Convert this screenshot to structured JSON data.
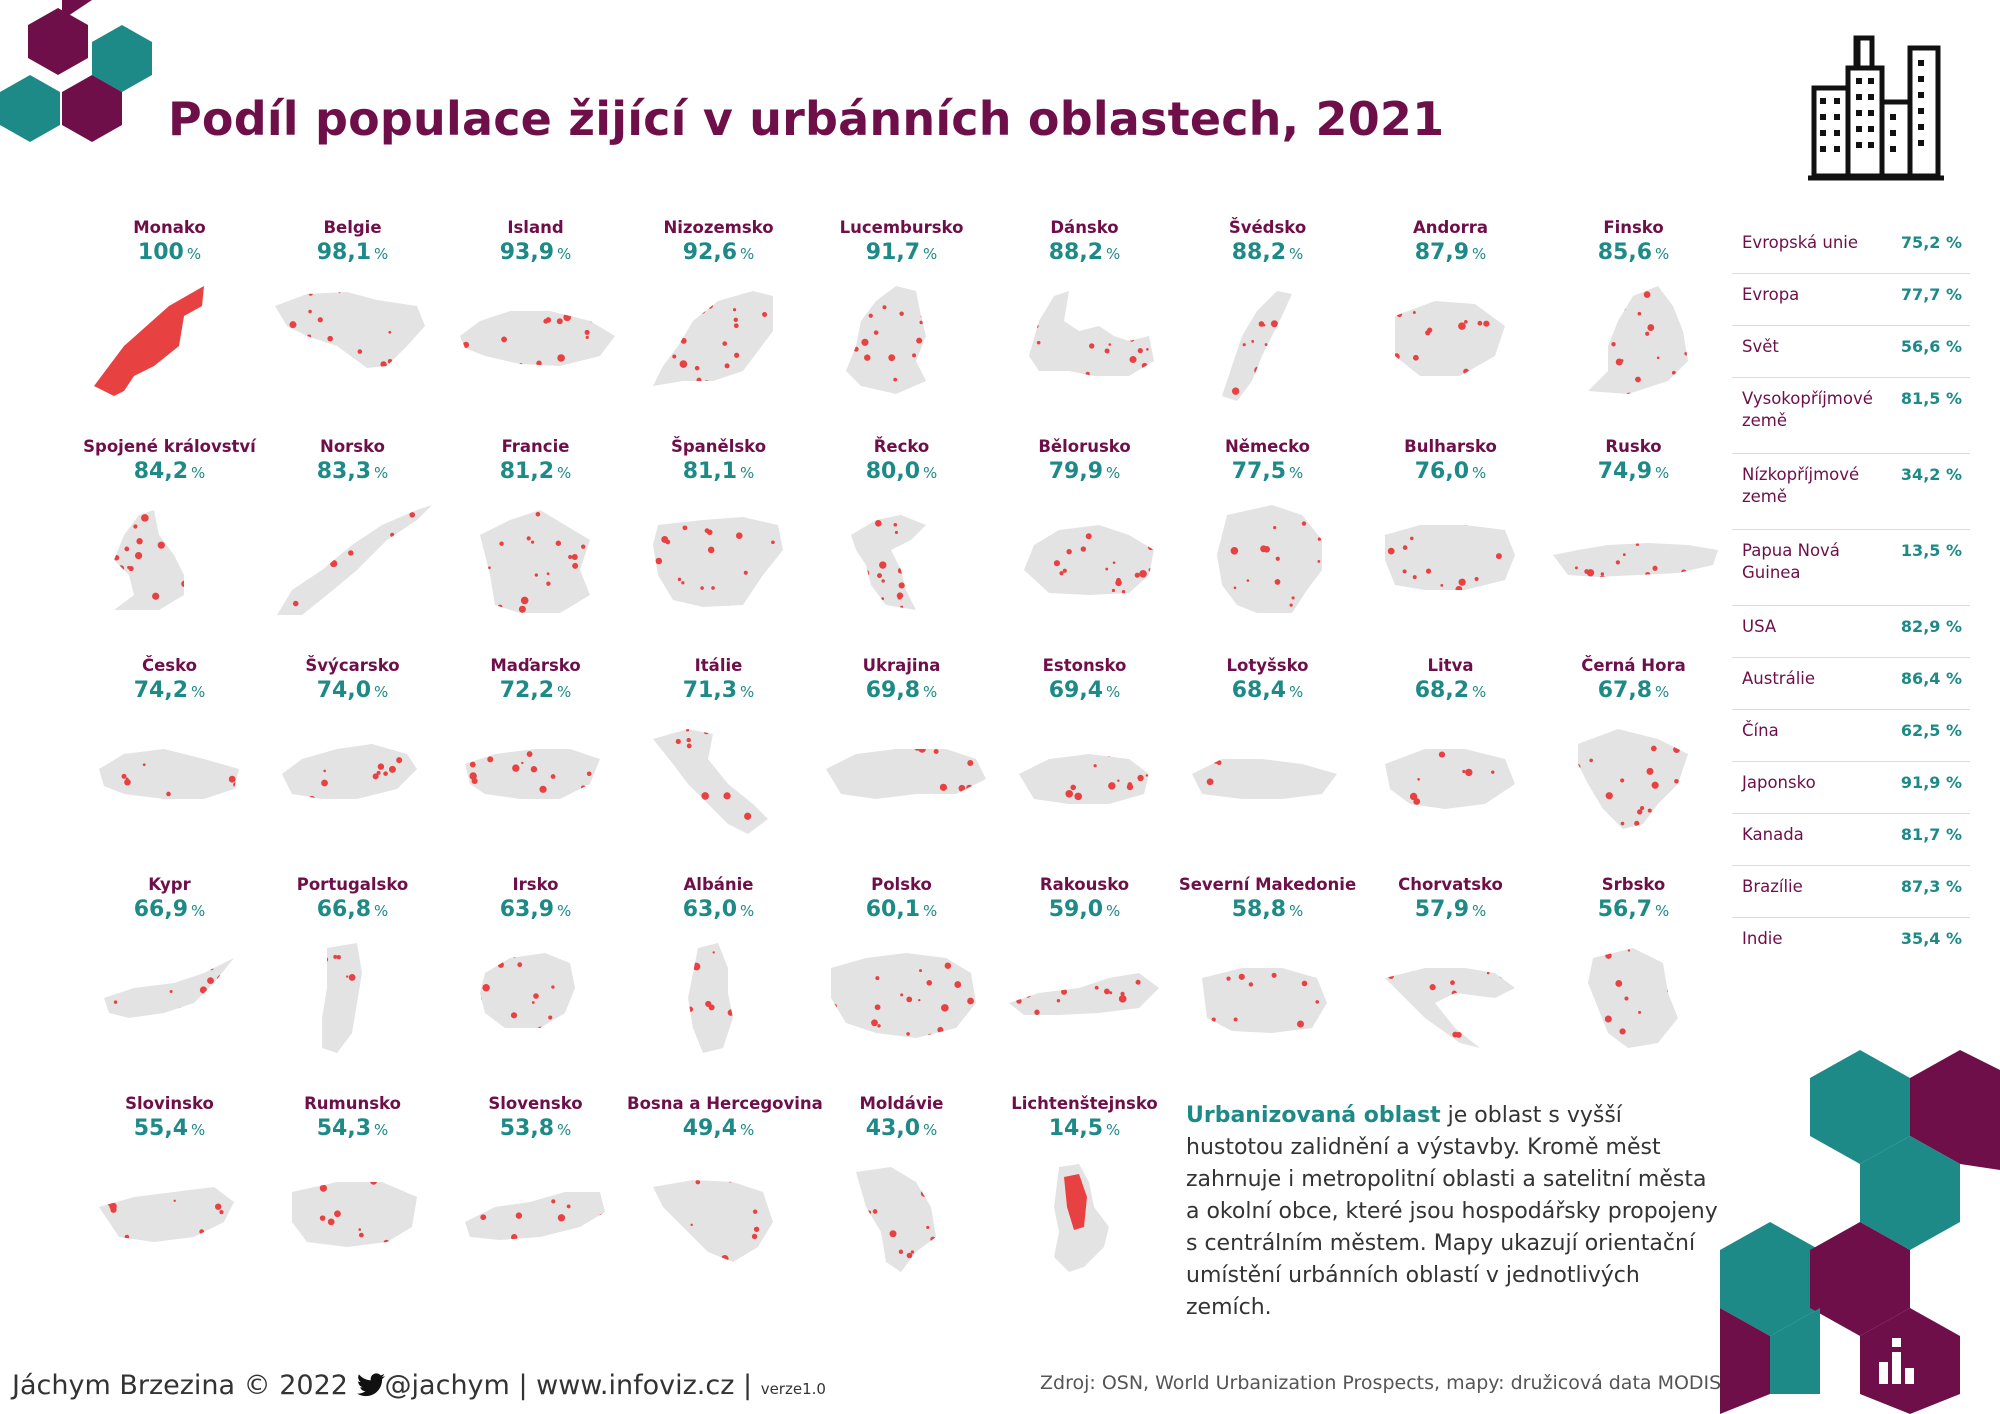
{
  "title": "Podíl populace žijící v urbánních oblastech, 2021",
  "colors": {
    "title": "#6e0f4a",
    "value": "#1e8a87",
    "map_land": "#e3e3e3",
    "map_urban": "#e84142",
    "hex_purple": "#6e0f4a",
    "hex_teal": "#1e8a87"
  },
  "chart_data": {
    "type": "table",
    "unit": "%",
    "countries": [
      {
        "name": "Monako",
        "value": "100",
        "num": 100
      },
      {
        "name": "Belgie",
        "value": "98,1",
        "num": 98.1
      },
      {
        "name": "Island",
        "value": "93,9",
        "num": 93.9
      },
      {
        "name": "Nizozemsko",
        "value": "92,6",
        "num": 92.6
      },
      {
        "name": "Lucembursko",
        "value": "91,7",
        "num": 91.7
      },
      {
        "name": "Dánsko",
        "value": "88,2",
        "num": 88.2
      },
      {
        "name": "Švédsko",
        "value": "88,2",
        "num": 88.2
      },
      {
        "name": "Andorra",
        "value": "87,9",
        "num": 87.9
      },
      {
        "name": "Finsko",
        "value": "85,6",
        "num": 85.6
      },
      {
        "name": "Spojené království",
        "value": "84,2",
        "num": 84.2
      },
      {
        "name": "Norsko",
        "value": "83,3",
        "num": 83.3
      },
      {
        "name": "Francie",
        "value": "81,2",
        "num": 81.2
      },
      {
        "name": "Španělsko",
        "value": "81,1",
        "num": 81.1
      },
      {
        "name": "Řecko",
        "value": "80,0",
        "num": 80.0
      },
      {
        "name": "Bělorusko",
        "value": "79,9",
        "num": 79.9
      },
      {
        "name": "Německo",
        "value": "77,5",
        "num": 77.5
      },
      {
        "name": "Bulharsko",
        "value": "76,0",
        "num": 76.0
      },
      {
        "name": "Rusko",
        "value": "74,9",
        "num": 74.9
      },
      {
        "name": "Česko",
        "value": "74,2",
        "num": 74.2
      },
      {
        "name": "Švýcarsko",
        "value": "74,0",
        "num": 74.0
      },
      {
        "name": "Maďarsko",
        "value": "72,2",
        "num": 72.2
      },
      {
        "name": "Itálie",
        "value": "71,3",
        "num": 71.3
      },
      {
        "name": "Ukrajina",
        "value": "69,8",
        "num": 69.8
      },
      {
        "name": "Estonsko",
        "value": "69,4",
        "num": 69.4
      },
      {
        "name": "Lotyšsko",
        "value": "68,4",
        "num": 68.4
      },
      {
        "name": "Litva",
        "value": "68,2",
        "num": 68.2
      },
      {
        "name": "Černá Hora",
        "value": "67,8",
        "num": 67.8
      },
      {
        "name": "Kypr",
        "value": "66,9",
        "num": 66.9
      },
      {
        "name": "Portugalsko",
        "value": "66,8",
        "num": 66.8
      },
      {
        "name": "Irsko",
        "value": "63,9",
        "num": 63.9
      },
      {
        "name": "Albánie",
        "value": "63,0",
        "num": 63.0
      },
      {
        "name": "Polsko",
        "value": "60,1",
        "num": 60.1
      },
      {
        "name": "Rakousko",
        "value": "59,0",
        "num": 59.0
      },
      {
        "name": "Severní Makedonie",
        "value": "58,8",
        "num": 58.8
      },
      {
        "name": "Chorvatsko",
        "value": "57,9",
        "num": 57.9
      },
      {
        "name": "Srbsko",
        "value": "56,7",
        "num": 56.7
      },
      {
        "name": "Slovinsko",
        "value": "55,4",
        "num": 55.4
      },
      {
        "name": "Rumunsko",
        "value": "54,3",
        "num": 54.3
      },
      {
        "name": "Slovensko",
        "value": "53,8",
        "num": 53.8
      },
      {
        "name": "Bosna a Hercegovina",
        "value": "49,4",
        "num": 49.4
      },
      {
        "name": "Moldávie",
        "value": "43,0",
        "num": 43.0
      },
      {
        "name": "Lichtenštejnsko",
        "value": "14,5",
        "num": 14.5
      }
    ],
    "regions": [
      {
        "name": "Evropská unie",
        "value": "75,2 %"
      },
      {
        "name": "Evropa",
        "value": "77,7 %"
      },
      {
        "name": "Svět",
        "value": "56,6 %"
      },
      {
        "name": "Vysokopříjmové země",
        "value": "81,5 %"
      },
      {
        "name": "Nízkopříjmové země",
        "value": "34,2 %"
      },
      {
        "name": "Papua Nová Guinea",
        "value": "13,5 %"
      },
      {
        "name": "USA",
        "value": "82,9 %"
      },
      {
        "name": "Austrálie",
        "value": "86,4 %"
      },
      {
        "name": "Čína",
        "value": "62,5 %"
      },
      {
        "name": "Japonsko",
        "value": "91,9 %"
      },
      {
        "name": "Kanada",
        "value": "81,7 %"
      },
      {
        "name": "Brazílie",
        "value": "87,3 %"
      },
      {
        "name": "Indie",
        "value": "35,4 %"
      }
    ]
  },
  "note": {
    "highlight": "Urbanizovaná oblast",
    "text": " je oblast s vyšší hustotou zalidnění a výstavby. Kromě měst zahrnuje i metropolitní oblasti a satelitní města a okolní obce, které jsou hospodářsky propojeny s centrálním městem. Mapy ukazují orientační umístění urbánních oblastí v jednotlivých zemích."
  },
  "footer": {
    "author": "Jáchym Brzezina © 2022",
    "twitter": "@jachym",
    "separator": "|",
    "site": "www.infoviz.cz",
    "version_label": "verze",
    "version": "1.0",
    "source": "Zdroj: OSN, World Urbanization Prospects, mapy: družicová data MODIS"
  },
  "icons": {
    "buildings": "city-buildings-icon",
    "chart": "bar-chart-icon",
    "twitter": "twitter-bird-icon"
  }
}
